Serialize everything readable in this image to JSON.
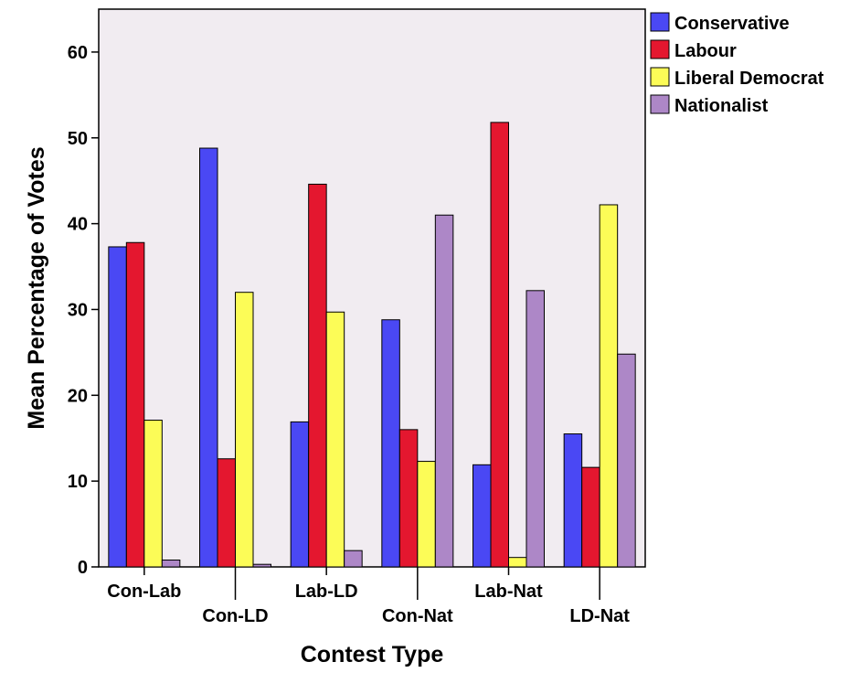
{
  "chart_data": {
    "type": "bar",
    "title": "",
    "xlabel": "Contest Type",
    "ylabel": "Mean Percentage of Votes",
    "ylim": [
      0,
      65
    ],
    "yticks": [
      0,
      10,
      20,
      30,
      40,
      50,
      60
    ],
    "categories": [
      "Con-Lab",
      "Con-LD",
      "Lab-LD",
      "Con-Nat",
      "Lab-Nat",
      "LD-Nat"
    ],
    "series": [
      {
        "name": "Conservative",
        "values": [
          37.3,
          48.8,
          16.9,
          28.8,
          11.9,
          15.5
        ],
        "color": "#4a48f4"
      },
      {
        "name": "Labour",
        "values": [
          37.8,
          12.6,
          44.6,
          16.0,
          51.8,
          11.6
        ],
        "color": "#e4172f"
      },
      {
        "name": "Liberal Democrat",
        "values": [
          17.1,
          32.0,
          29.7,
          12.3,
          1.1,
          42.2
        ],
        "color": "#fcfc57"
      },
      {
        "name": "Nationalist",
        "values": [
          0.8,
          0.3,
          1.9,
          41.0,
          32.2,
          24.8
        ],
        "color": "#ad87c7"
      }
    ],
    "plot_background": "#f1ecf1",
    "grid": false,
    "legend_position": "top-right-outside"
  }
}
